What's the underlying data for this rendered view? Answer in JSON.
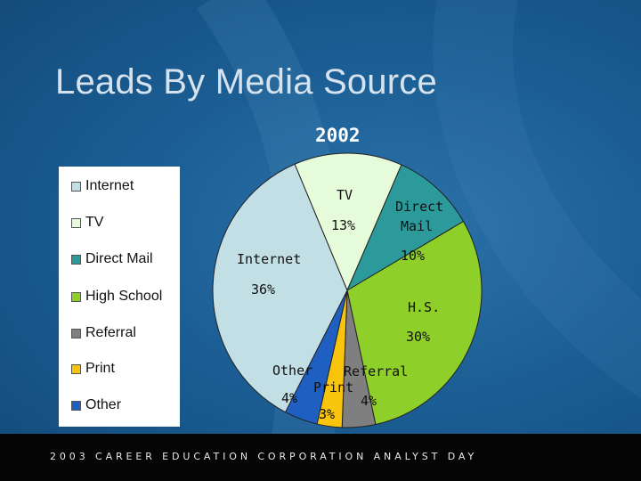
{
  "slide": {
    "title": "Leads By Media Source",
    "footer": "2003 CAREER EDUCATION CORPORATION ANALYST DAY"
  },
  "chart_data": {
    "type": "pie",
    "title": "2002",
    "categories": [
      "Internet",
      "TV",
      "Direct Mail",
      "High School",
      "Referral",
      "Print",
      "Other"
    ],
    "values": [
      36,
      13,
      10,
      30,
      4,
      3,
      4
    ],
    "colors": [
      "#c3dfe6",
      "#e6fbd9",
      "#2c9a9a",
      "#8fcf2a",
      "#7f7f7f",
      "#f8c40c",
      "#1f5fc2"
    ],
    "legend_position": "left",
    "slice_labels": [
      {
        "name": "Internet",
        "pct": "36%"
      },
      {
        "name": "TV",
        "pct": "13%"
      },
      {
        "name": "Direct Mail",
        "pct": "10%"
      },
      {
        "name": "H.S.",
        "pct": "30%"
      },
      {
        "name": "Referral",
        "pct": "4%"
      },
      {
        "name": "Print",
        "pct": "3%"
      },
      {
        "name": "Other",
        "pct": "4%"
      }
    ]
  }
}
